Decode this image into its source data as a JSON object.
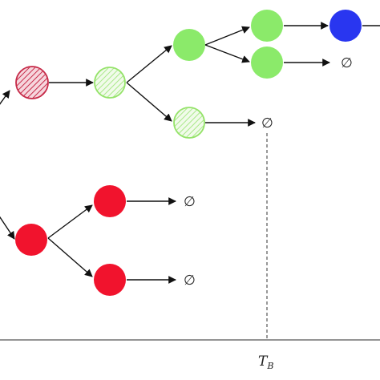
{
  "diagram": {
    "empty_symbol": "∅",
    "time_label": "T",
    "time_label_sub": "B",
    "colors": {
      "hatched_red_stroke": "#c62a48",
      "hatched_red_fill": "#efb3c0",
      "hatched_green_stroke": "#95e36a",
      "hatched_green_fill": "#d6f5c2",
      "green": "#8bea6a",
      "blue": "#2936f0",
      "red": "#f1132d",
      "arrow": "#111111",
      "dashed": "#333333",
      "axis": "#555555"
    }
  }
}
